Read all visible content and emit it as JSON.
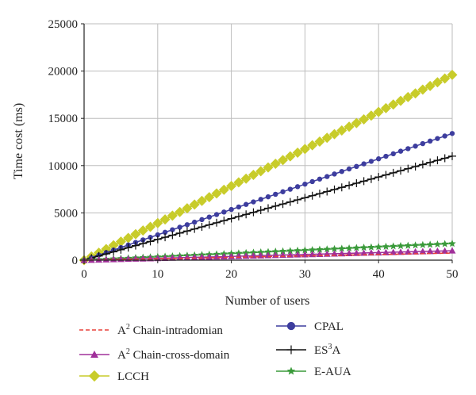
{
  "chart_data": {
    "type": "line",
    "xlabel": "Number of users",
    "ylabel": "Time cost (ms)",
    "xlim": [
      0,
      50
    ],
    "ylim": [
      0,
      25000
    ],
    "x_ticks": [
      "0",
      "10",
      "20",
      "30",
      "40",
      "50"
    ],
    "y_ticks": [
      "0",
      "5000",
      "10000",
      "15000",
      "20000",
      "25000"
    ],
    "grid": true,
    "legend_placement": "bottom",
    "series": [
      {
        "name": "A2 Chain-intradomian",
        "legend": {
          "prefix": "A",
          "sup": "2",
          "rest": " Chain-intradomian"
        },
        "color": "#e8403a",
        "style": "dashed",
        "marker": "none",
        "x": [
          0,
          50
        ],
        "y": [
          0,
          750
        ]
      },
      {
        "name": "A2 Chain-cross-domain",
        "legend": {
          "prefix": "A",
          "sup": "2",
          "rest": " Chain-cross-domain"
        },
        "color": "#a0309a",
        "style": "solid",
        "marker": "triangle",
        "x": [
          0,
          50
        ],
        "y": [
          0,
          1000
        ]
      },
      {
        "name": "LCCH",
        "legend": {
          "prefix": "LCCH",
          "sup": "",
          "rest": ""
        },
        "color": "#c8cc2a",
        "style": "solid",
        "marker": "diamond",
        "x": [
          0,
          50
        ],
        "y": [
          0,
          19600
        ]
      },
      {
        "name": "CPAL",
        "legend": {
          "prefix": "CPAL",
          "sup": "",
          "rest": ""
        },
        "color": "#3d3d9e",
        "style": "solid",
        "marker": "circle",
        "x": [
          0,
          50
        ],
        "y": [
          0,
          13400
        ]
      },
      {
        "name": "ES3A",
        "legend": {
          "prefix": "ES",
          "sup": "3",
          "rest": "A"
        },
        "color": "#111111",
        "style": "solid",
        "marker": "plus",
        "x": [
          0,
          50
        ],
        "y": [
          0,
          11000
        ]
      },
      {
        "name": "E-AUA",
        "legend": {
          "prefix": "E-AUA",
          "sup": "",
          "rest": ""
        },
        "color": "#3a9a3a",
        "style": "solid",
        "marker": "star",
        "x": [
          0,
          50
        ],
        "y": [
          0,
          1750
        ]
      }
    ]
  }
}
